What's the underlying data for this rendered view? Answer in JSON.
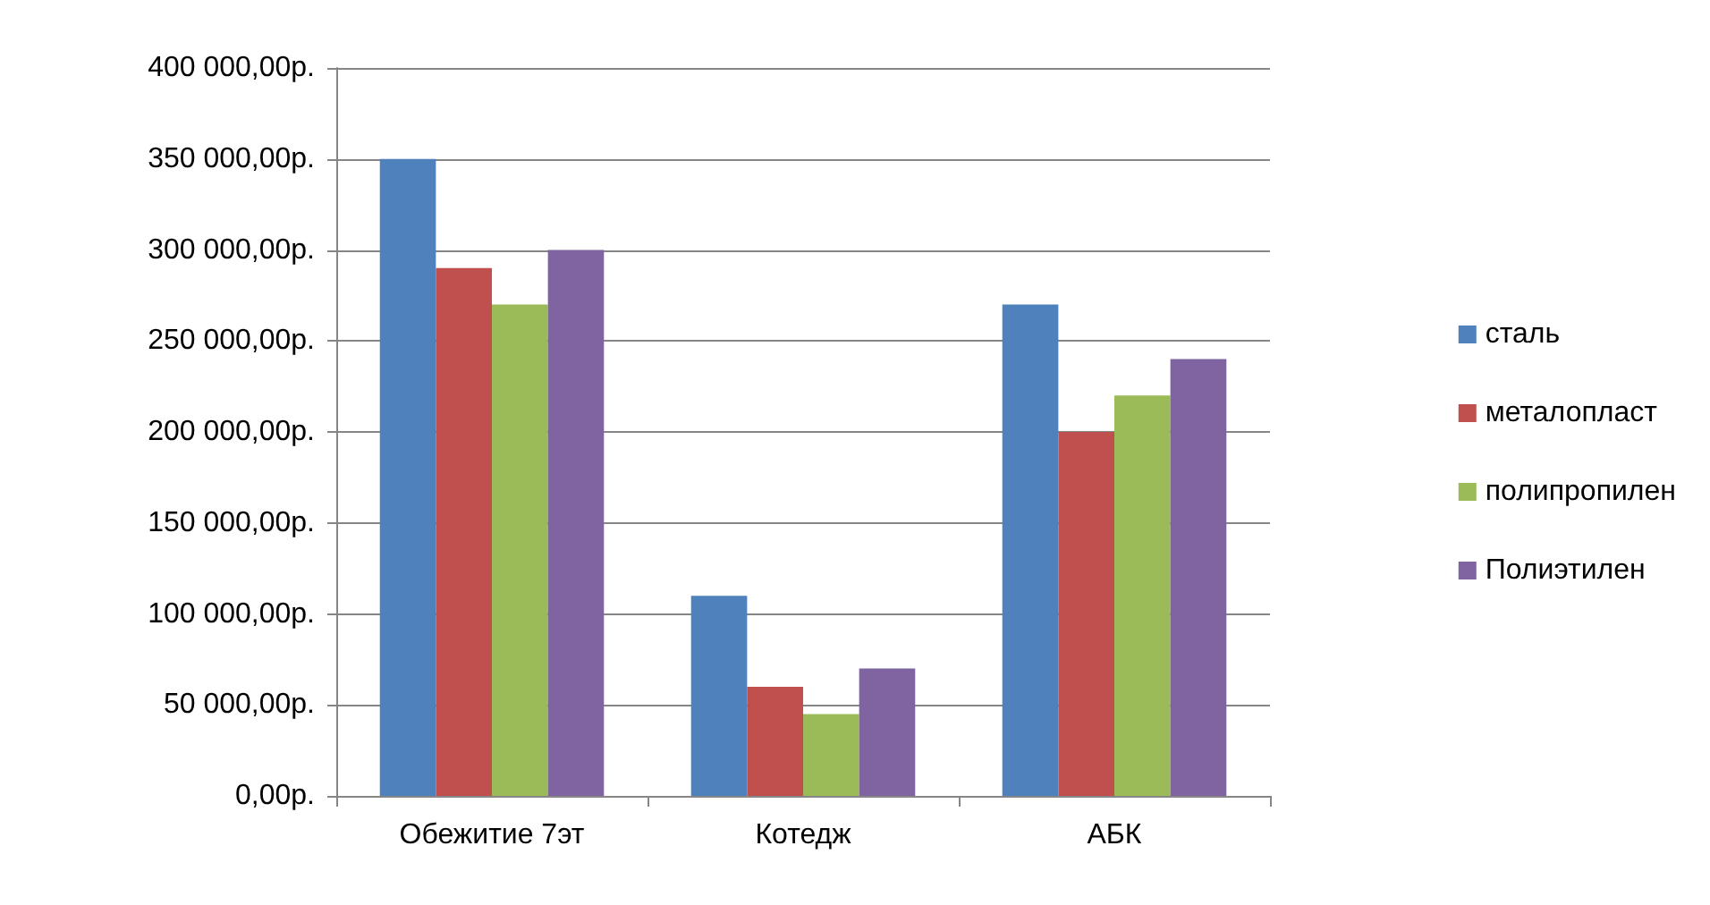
{
  "chart_data": {
    "type": "bar",
    "categories": [
      "Обежитие 7эт",
      "Котедж",
      "АБК"
    ],
    "series": [
      {
        "name": "сталь",
        "color": "#4f81bd",
        "values": [
          350000,
          110000,
          270000
        ]
      },
      {
        "name": "металопласт",
        "color": "#c0504d",
        "values": [
          290000,
          60000,
          200000
        ]
      },
      {
        "name": "полипропилен",
        "color": "#9bbb59",
        "values": [
          270000,
          45000,
          220000
        ]
      },
      {
        "name": "Полиэтилен",
        "color": "#8064a2",
        "values": [
          300000,
          70000,
          240000
        ]
      }
    ],
    "ylim": [
      0,
      400000
    ],
    "yticks": [
      {
        "value": 0,
        "label": "0,00р."
      },
      {
        "value": 50000,
        "label": "50 000,00р."
      },
      {
        "value": 100000,
        "label": "100 000,00р."
      },
      {
        "value": 150000,
        "label": "150 000,00р."
      },
      {
        "value": 200000,
        "label": "200 000,00р."
      },
      {
        "value": 250000,
        "label": "250 000,00р."
      },
      {
        "value": 300000,
        "label": "300 000,00р."
      },
      {
        "value": 350000,
        "label": "350 000,00р."
      },
      {
        "value": 400000,
        "label": "400 000,00р."
      }
    ],
    "grid": "y",
    "legend": "right"
  }
}
